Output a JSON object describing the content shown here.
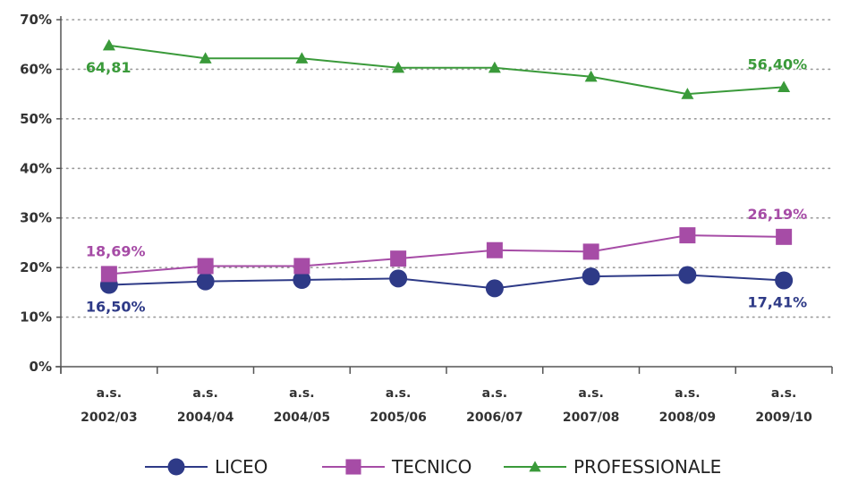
{
  "chart_data": {
    "type": "line",
    "categories": [
      [
        "a.s.",
        "2002/03"
      ],
      [
        "a.s.",
        "2004/04"
      ],
      [
        "a.s.",
        "2004/05"
      ],
      [
        "a.s.",
        "2005/06"
      ],
      [
        "a.s.",
        "2006/07"
      ],
      [
        "a.s.",
        "2007/08"
      ],
      [
        "a.s.",
        "2008/09"
      ],
      [
        "a.s.",
        "2009/10"
      ]
    ],
    "y_ticks": [
      "0%",
      "10%",
      "20%",
      "30%",
      "40%",
      "50%",
      "60%",
      "70%"
    ],
    "ylim": [
      0,
      70
    ],
    "grid": true,
    "legend_position": "bottom",
    "series": [
      {
        "name": "LICEO",
        "color": "#2e3a87",
        "marker": "circle",
        "values": [
          16.5,
          17.2,
          17.5,
          17.8,
          15.8,
          18.2,
          18.5,
          17.41
        ],
        "labels": [
          {
            "index": 0,
            "text": "16,50%",
            "pos": "below"
          },
          {
            "index": 7,
            "text": "17,41%",
            "pos": "below"
          }
        ]
      },
      {
        "name": "TECNICO",
        "color": "#a64ca6",
        "marker": "square",
        "values": [
          18.69,
          20.3,
          20.3,
          21.8,
          23.5,
          23.2,
          26.5,
          26.19
        ],
        "labels": [
          {
            "index": 0,
            "text": "18,69%",
            "pos": "above"
          },
          {
            "index": 7,
            "text": "26,19%",
            "pos": "above"
          }
        ]
      },
      {
        "name": "PROFESSIONALE",
        "color": "#3a9a3a",
        "marker": "triangle",
        "values": [
          64.81,
          62.2,
          62.2,
          60.3,
          60.3,
          58.5,
          55.0,
          56.4
        ],
        "labels": [
          {
            "index": 0,
            "text": "64,81",
            "pos": "below"
          },
          {
            "index": 7,
            "text": "56,40%",
            "pos": "above"
          }
        ]
      }
    ]
  }
}
